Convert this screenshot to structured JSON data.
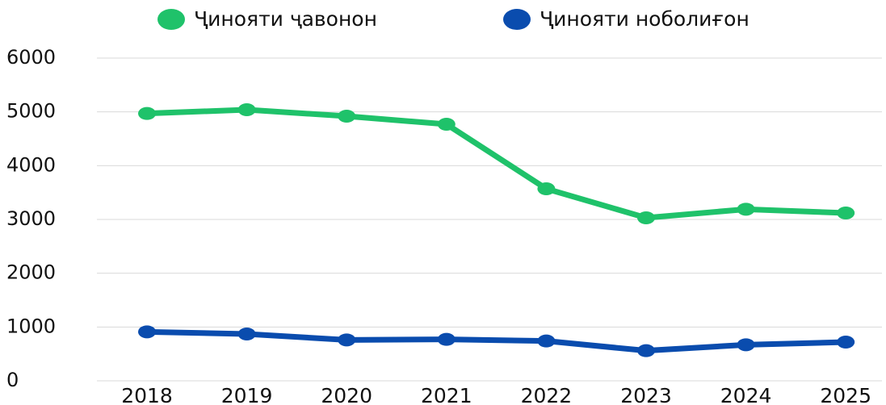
{
  "chart_data": {
    "type": "line",
    "categories": [
      "2018",
      "2019",
      "2020",
      "2021",
      "2022",
      "2023",
      "2024",
      "2025"
    ],
    "series": [
      {
        "name": "Ҷинояти ҷавонон",
        "color": "#1fc26a",
        "values": [
          4970,
          5040,
          4920,
          4770,
          3570,
          3030,
          3190,
          3120
        ]
      },
      {
        "name": "Ҷинояти ноболиғон",
        "color": "#0a4cae",
        "values": [
          910,
          870,
          760,
          770,
          740,
          560,
          670,
          720
        ]
      }
    ],
    "ylim": [
      0,
      6000
    ],
    "yticks": [
      0,
      1000,
      2000,
      3000,
      4000,
      5000,
      6000
    ],
    "grid": true,
    "legend": "top"
  }
}
